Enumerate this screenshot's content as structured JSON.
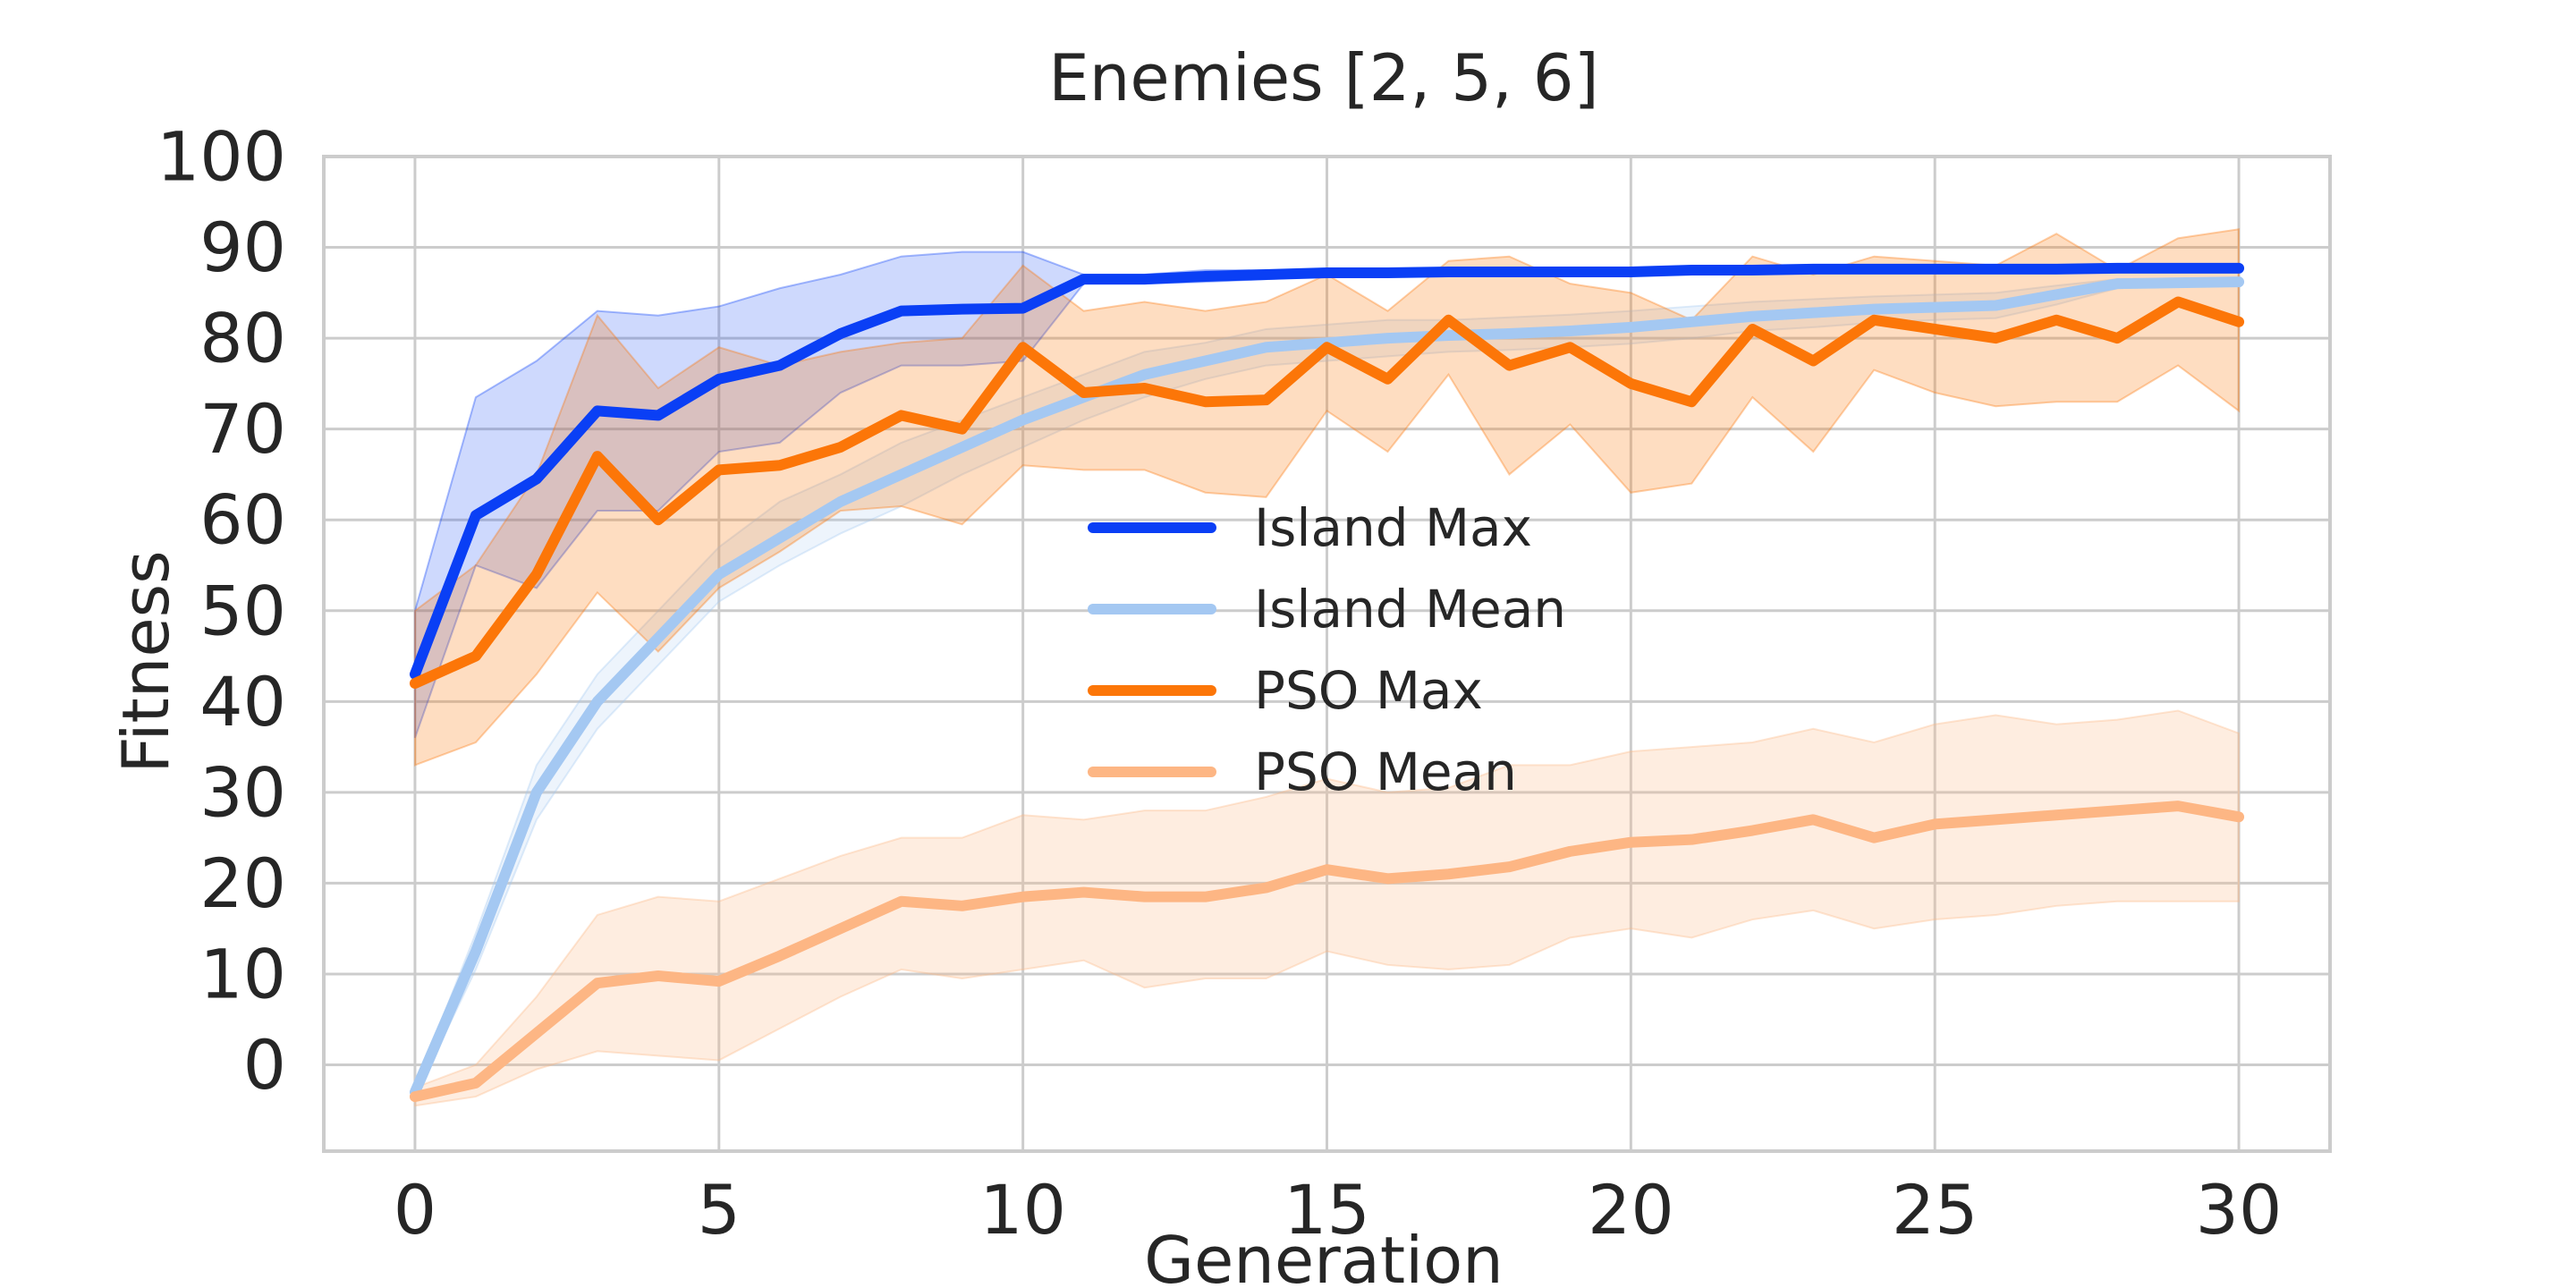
{
  "chart_data": {
    "type": "line",
    "title": "Enemies [2, 5, 6]",
    "xlabel": "Generation",
    "ylabel": "Fitness",
    "xlim": [
      -1.5,
      31.5
    ],
    "ylim": [
      -9.5,
      100
    ],
    "xticks": [
      0,
      5,
      10,
      15,
      20,
      25,
      30
    ],
    "yticks": [
      0,
      10,
      20,
      30,
      40,
      50,
      60,
      70,
      80,
      90,
      100
    ],
    "grid": true,
    "legend_position": "center",
    "x": [
      0,
      1,
      2,
      3,
      4,
      5,
      6,
      7,
      8,
      9,
      10,
      11,
      12,
      13,
      14,
      15,
      16,
      17,
      18,
      19,
      20,
      21,
      22,
      23,
      24,
      25,
      26,
      27,
      28,
      29,
      30
    ],
    "series": [
      {
        "name": "Island Max",
        "color": "#0a3ff5",
        "values": [
          43,
          60.5,
          64.5,
          72,
          71.5,
          75.5,
          77,
          80.5,
          83,
          83.2,
          83.3,
          86.5,
          86.5,
          86.8,
          87,
          87.2,
          87.2,
          87.3,
          87.3,
          87.3,
          87.3,
          87.5,
          87.5,
          87.6,
          87.6,
          87.6,
          87.6,
          87.6,
          87.7,
          87.7,
          87.7
        ],
        "band_upper": [
          50,
          73.5,
          77.5,
          83,
          82.5,
          83.5,
          85.5,
          87,
          89,
          89.5,
          89.5,
          87,
          87,
          87.5,
          87.5,
          87.5,
          87.5,
          87.5,
          87.5,
          87.5,
          87.5,
          87.8,
          87.8,
          87.8,
          87.8,
          87.8,
          87.8,
          87.8,
          87.8,
          87.8,
          87.8
        ],
        "band_lower": [
          36,
          55,
          52.5,
          61,
          61,
          67.5,
          68.5,
          74,
          77,
          77,
          77.5,
          86,
          86,
          86.2,
          86.5,
          86.8,
          86.8,
          87,
          87,
          87,
          87,
          87.2,
          87.2,
          87.3,
          87.3,
          87.3,
          87.3,
          87.3,
          87.5,
          87.5,
          87.5
        ]
      },
      {
        "name": "Island Mean",
        "color": "#a4c8f2",
        "values": [
          -3,
          12.5,
          30,
          40,
          47,
          54,
          58,
          62,
          65,
          68,
          71,
          73.5,
          76,
          77.5,
          79,
          79.5,
          80,
          80.3,
          80.5,
          80.8,
          81.2,
          81.8,
          82.4,
          82.8,
          83.2,
          83.4,
          83.6,
          84.8,
          86,
          86.1,
          86.2
        ],
        "band_upper": [
          -2.5,
          14.5,
          33,
          43,
          50,
          57,
          62,
          65,
          68.5,
          71,
          73.5,
          76,
          78.5,
          79.5,
          81,
          81.5,
          82,
          82,
          82.3,
          82.6,
          83,
          83.5,
          84,
          84.3,
          84.6,
          84.8,
          85,
          85.8,
          86.5,
          86.5,
          86.5
        ],
        "band_lower": [
          -3.5,
          10.5,
          27,
          37,
          44,
          51,
          55,
          58.5,
          61.5,
          65,
          68,
          71,
          73.5,
          75.5,
          77,
          77.5,
          78,
          78.5,
          78.7,
          79,
          79.4,
          80,
          80.8,
          81.2,
          81.7,
          82,
          82.2,
          83.7,
          85.5,
          85.7,
          85.8
        ]
      },
      {
        "name": "PSO Max",
        "color": "#fc7608",
        "values": [
          42,
          45,
          54,
          67,
          60,
          65.5,
          66,
          68,
          71.5,
          70,
          79,
          74,
          74.5,
          73,
          73.2,
          79,
          75.5,
          82,
          77,
          79,
          75,
          73,
          81,
          77.5,
          82,
          81,
          80,
          82,
          80,
          84,
          81.8
        ],
        "band_upper": [
          50,
          55,
          65,
          82.5,
          74.5,
          79,
          77,
          78.5,
          79.5,
          80,
          88,
          83,
          84,
          83,
          84,
          87,
          83,
          88.5,
          89,
          86,
          85,
          82,
          89,
          87,
          89,
          88.5,
          88,
          91.5,
          87.5,
          91,
          92
        ],
        "band_lower": [
          33,
          35.5,
          43,
          52,
          45.5,
          52.5,
          56.5,
          61,
          61.5,
          59.5,
          66,
          65.5,
          65.5,
          63,
          62.5,
          72,
          67.5,
          76,
          65,
          70.5,
          63,
          64,
          73.5,
          67.5,
          76.5,
          74,
          72.5,
          73,
          73,
          77,
          72
        ]
      },
      {
        "name": "PSO Mean",
        "color": "#fdb684",
        "values": [
          -3.5,
          -2,
          3.5,
          9,
          9.8,
          9.2,
          12,
          15,
          18,
          17.5,
          18.5,
          19,
          18.5,
          18.5,
          19.5,
          21.5,
          20.5,
          21,
          21.8,
          23.5,
          24.5,
          24.8,
          25.8,
          27,
          25,
          26.5,
          27,
          27.5,
          28,
          28.5,
          27.3
        ],
        "band_upper": [
          -2.5,
          0,
          7.5,
          16.5,
          18.5,
          18,
          20.5,
          23,
          25,
          25,
          27.5,
          27,
          28,
          28,
          29.5,
          31.5,
          30,
          30.5,
          33,
          33,
          34.5,
          35,
          35.5,
          37,
          35.5,
          37.5,
          38.5,
          37.5,
          38,
          39,
          36.5
        ],
        "band_lower": [
          -4.5,
          -3.5,
          -0.5,
          1.5,
          1,
          0.5,
          4,
          7.5,
          10.5,
          9.5,
          10.5,
          11.5,
          8.5,
          9.5,
          9.5,
          12.5,
          11,
          10.5,
          11,
          14,
          15,
          14,
          16,
          17,
          15,
          16,
          16.5,
          17.5,
          18,
          18,
          18
        ]
      }
    ]
  }
}
